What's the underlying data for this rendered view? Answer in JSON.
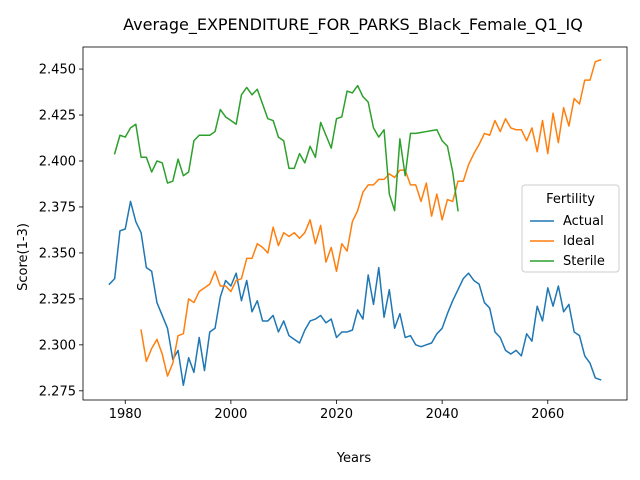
{
  "chart_data": {
    "type": "line",
    "title": "Average_EXPENDITURE_FOR_PARKS_Black_Female_Q1_IQ",
    "xlabel": "Years",
    "ylabel": "Score(1-3)",
    "xlim": [
      1972,
      2075
    ],
    "ylim": [
      2.27,
      2.462
    ],
    "xticks": [
      1980,
      2000,
      2020,
      2040,
      2060
    ],
    "yticks": [
      2.275,
      2.3,
      2.325,
      2.35,
      2.375,
      2.4,
      2.425,
      2.45
    ],
    "ytick_labels": [
      "2.275",
      "2.300",
      "2.325",
      "2.350",
      "2.375",
      "2.400",
      "2.425",
      "2.450"
    ],
    "grid": false,
    "legend": {
      "title": "Fertility",
      "location": "center-right"
    },
    "series": [
      {
        "name": "Actual",
        "color": "#1f77b4",
        "x": [
          1977,
          1978,
          1979,
          1980,
          1981,
          1982,
          1983,
          1984,
          1985,
          1986,
          1987,
          1988,
          1989,
          1990,
          1991,
          1992,
          1993,
          1994,
          1995,
          1996,
          1997,
          1998,
          1999,
          2000,
          2001,
          2002,
          2003,
          2004,
          2005,
          2006,
          2007,
          2008,
          2009,
          2010,
          2011,
          2012,
          2013,
          2014,
          2015,
          2016,
          2017,
          2018,
          2019,
          2020,
          2021,
          2022,
          2023,
          2024,
          2025,
          2026,
          2027,
          2028,
          2029,
          2030,
          2031,
          2032,
          2033,
          2034,
          2035,
          2036,
          2037,
          2038,
          2039,
          2040,
          2041,
          2042,
          2043,
          2044,
          2045,
          2046,
          2047,
          2048,
          2049,
          2050,
          2051,
          2052,
          2053,
          2054,
          2055,
          2056,
          2057,
          2058,
          2059,
          2060,
          2061,
          2062,
          2063,
          2064,
          2065,
          2066,
          2067,
          2068,
          2069,
          2070
        ],
        "values": [
          2.333,
          2.336,
          2.362,
          2.363,
          2.378,
          2.367,
          2.361,
          2.342,
          2.34,
          2.323,
          2.316,
          2.309,
          2.292,
          2.297,
          2.278,
          2.293,
          2.285,
          2.304,
          2.286,
          2.307,
          2.309,
          2.326,
          2.335,
          2.332,
          2.339,
          2.324,
          2.335,
          2.318,
          2.324,
          2.313,
          2.313,
          2.316,
          2.307,
          2.313,
          2.305,
          2.303,
          2.301,
          2.308,
          2.313,
          2.314,
          2.316,
          2.312,
          2.314,
          2.304,
          2.307,
          2.307,
          2.308,
          2.319,
          2.314,
          2.338,
          2.322,
          2.342,
          2.315,
          2.33,
          2.309,
          2.317,
          2.304,
          2.305,
          2.3,
          2.299,
          2.3,
          2.301,
          2.306,
          2.309,
          2.317,
          2.324,
          2.33,
          2.336,
          2.339,
          2.335,
          2.333,
          2.323,
          2.32,
          2.307,
          2.304,
          2.297,
          2.295,
          2.297,
          2.294,
          2.306,
          2.302,
          2.321,
          2.313,
          2.331,
          2.321,
          2.332,
          2.318,
          2.322,
          2.307,
          2.305,
          2.294,
          2.29,
          2.282,
          2.281
        ]
      },
      {
        "name": "Ideal",
        "color": "#ff7f0e",
        "x": [
          1983,
          1984,
          1985,
          1986,
          1987,
          1988,
          1989,
          1990,
          1991,
          1992,
          1993,
          1994,
          1995,
          1996,
          1997,
          1998,
          1999,
          2000,
          2001,
          2002,
          2003,
          2004,
          2005,
          2006,
          2007,
          2008,
          2009,
          2010,
          2011,
          2012,
          2013,
          2014,
          2015,
          2016,
          2017,
          2018,
          2019,
          2020,
          2021,
          2022,
          2023,
          2024,
          2025,
          2026,
          2027,
          2028,
          2029,
          2030,
          2031,
          2032,
          2033,
          2034,
          2035,
          2036,
          2037,
          2038,
          2039,
          2040,
          2041,
          2042,
          2043,
          2044,
          2045,
          2046,
          2047,
          2048,
          2049,
          2050,
          2051,
          2052,
          2053,
          2054,
          2055,
          2056,
          2057,
          2058,
          2059,
          2060,
          2061,
          2062,
          2063,
          2064,
          2065,
          2066,
          2067,
          2068,
          2069,
          2070
        ],
        "values": [
          2.308,
          2.291,
          2.298,
          2.303,
          2.295,
          2.283,
          2.29,
          2.305,
          2.306,
          2.325,
          2.323,
          2.329,
          2.331,
          2.333,
          2.34,
          2.332,
          2.332,
          2.329,
          2.335,
          2.336,
          2.347,
          2.347,
          2.355,
          2.353,
          2.35,
          2.364,
          2.354,
          2.361,
          2.359,
          2.361,
          2.358,
          2.361,
          2.368,
          2.355,
          2.365,
          2.345,
          2.353,
          2.34,
          2.355,
          2.351,
          2.367,
          2.373,
          2.383,
          2.387,
          2.387,
          2.39,
          2.39,
          2.393,
          2.391,
          2.395,
          2.395,
          2.387,
          2.387,
          2.378,
          2.388,
          2.37,
          2.382,
          2.368,
          2.379,
          2.378,
          2.389,
          2.389,
          2.398,
          2.404,
          2.409,
          2.415,
          2.414,
          2.422,
          2.416,
          2.423,
          2.418,
          2.417,
          2.417,
          2.411,
          2.418,
          2.405,
          2.422,
          2.404,
          2.426,
          2.41,
          2.429,
          2.419,
          2.434,
          2.431,
          2.444,
          2.444,
          2.454,
          2.455
        ]
      },
      {
        "name": "Sterile",
        "color": "#2ca02c",
        "x": [
          1978,
          1979,
          1980,
          1981,
          1982,
          1983,
          1984,
          1985,
          1986,
          1987,
          1988,
          1989,
          1990,
          1991,
          1992,
          1993,
          1994,
          1995,
          1996,
          1997,
          1998,
          1999,
          2000,
          2001,
          2002,
          2003,
          2004,
          2005,
          2006,
          2007,
          2008,
          2009,
          2010,
          2011,
          2012,
          2013,
          2014,
          2015,
          2016,
          2017,
          2018,
          2019,
          2020,
          2021,
          2022,
          2023,
          2024,
          2025,
          2026,
          2027,
          2028,
          2029,
          2030,
          2031,
          2032,
          2033,
          2034,
          2035,
          2036,
          2037,
          2038,
          2039,
          2040,
          2041,
          2042,
          2043
        ],
        "values": [
          2.404,
          2.414,
          2.413,
          2.418,
          2.42,
          2.402,
          2.402,
          2.394,
          2.4,
          2.399,
          2.388,
          2.389,
          2.401,
          2.392,
          2.394,
          2.411,
          2.414,
          2.414,
          2.414,
          2.416,
          2.428,
          2.424,
          2.422,
          2.42,
          2.436,
          2.44,
          2.436,
          2.439,
          2.431,
          2.423,
          2.422,
          2.413,
          2.411,
          2.396,
          2.396,
          2.404,
          2.399,
          2.408,
          2.402,
          2.421,
          2.414,
          2.407,
          2.423,
          2.424,
          2.438,
          2.437,
          2.441,
          2.435,
          2.432,
          2.418,
          2.413,
          2.417,
          2.382,
          2.373,
          2.412,
          2.392,
          2.415,
          2.415,
          2.4155,
          2.416,
          2.4165,
          2.417,
          2.411,
          2.408,
          2.394,
          2.373
        ]
      }
    ]
  }
}
